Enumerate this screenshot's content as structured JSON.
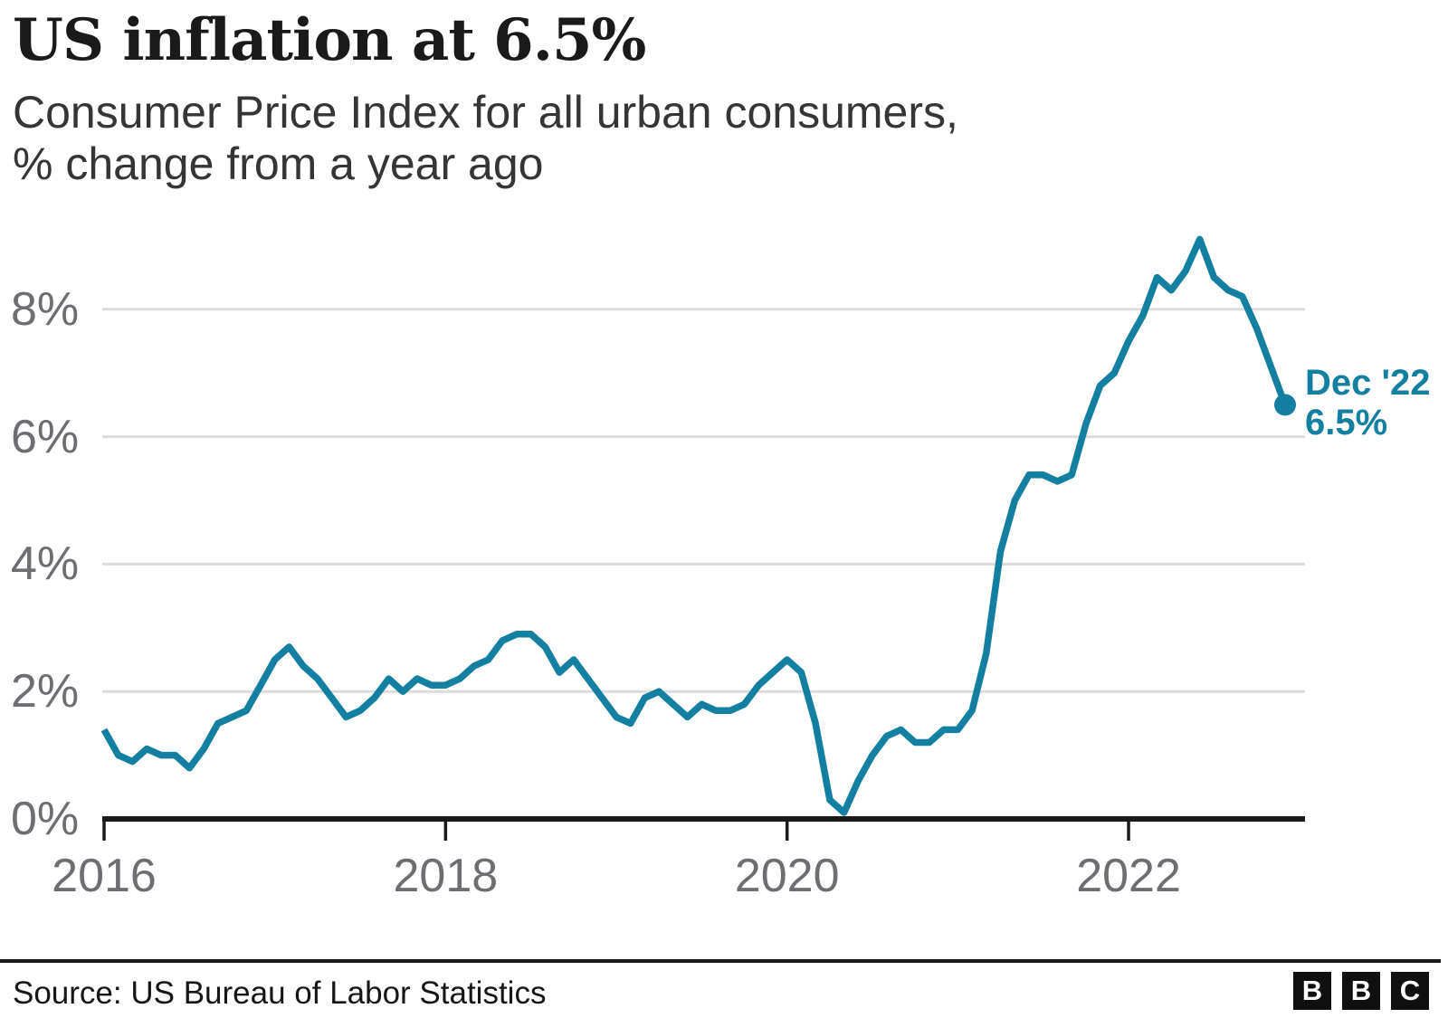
{
  "header": {
    "title": "US inflation at 6.5%",
    "subtitle_lines": [
      "Consumer Price Index for all urban consumers,",
      "% change from a year ago"
    ]
  },
  "footer": {
    "source": "Source: US Bureau of Labor Statistics",
    "brand_letters": [
      "B",
      "B",
      "C"
    ]
  },
  "chart_data": {
    "type": "line",
    "title": "US inflation at 6.5%",
    "subtitle": "Consumer Price Index for all urban consumers, % change from a year ago",
    "series_name": "CPI-U, % change from a year ago",
    "line_color": "#1380A1",
    "grid": "horizontal",
    "legend_position": "none",
    "ylim": [
      0,
      9.3
    ],
    "y_tick_values": [
      0,
      2,
      4,
      6,
      8
    ],
    "y_ticks": [
      "0%",
      "2%",
      "4%",
      "6%",
      "8%"
    ],
    "x_tick_month_indices": [
      0,
      24,
      48,
      72
    ],
    "x_ticks": [
      "2016",
      "2018",
      "2020",
      "2022"
    ],
    "x": [
      "2016-01",
      "2016-02",
      "2016-03",
      "2016-04",
      "2016-05",
      "2016-06",
      "2016-07",
      "2016-08",
      "2016-09",
      "2016-10",
      "2016-11",
      "2016-12",
      "2017-01",
      "2017-02",
      "2017-03",
      "2017-04",
      "2017-05",
      "2017-06",
      "2017-07",
      "2017-08",
      "2017-09",
      "2017-10",
      "2017-11",
      "2017-12",
      "2018-01",
      "2018-02",
      "2018-03",
      "2018-04",
      "2018-05",
      "2018-06",
      "2018-07",
      "2018-08",
      "2018-09",
      "2018-10",
      "2018-11",
      "2018-12",
      "2019-01",
      "2019-02",
      "2019-03",
      "2019-04",
      "2019-05",
      "2019-06",
      "2019-07",
      "2019-08",
      "2019-09",
      "2019-10",
      "2019-11",
      "2019-12",
      "2020-01",
      "2020-02",
      "2020-03",
      "2020-04",
      "2020-05",
      "2020-06",
      "2020-07",
      "2020-08",
      "2020-09",
      "2020-10",
      "2020-11",
      "2020-12",
      "2021-01",
      "2021-02",
      "2021-03",
      "2021-04",
      "2021-05",
      "2021-06",
      "2021-07",
      "2021-08",
      "2021-09",
      "2021-10",
      "2021-11",
      "2021-12",
      "2022-01",
      "2022-02",
      "2022-03",
      "2022-04",
      "2022-05",
      "2022-06",
      "2022-07",
      "2022-08",
      "2022-09",
      "2022-10",
      "2022-11",
      "2022-12"
    ],
    "values": [
      1.4,
      1.0,
      0.9,
      1.1,
      1.0,
      1.0,
      0.8,
      1.1,
      1.5,
      1.6,
      1.7,
      2.1,
      2.5,
      2.7,
      2.4,
      2.2,
      1.9,
      1.6,
      1.7,
      1.9,
      2.2,
      2.0,
      2.2,
      2.1,
      2.1,
      2.2,
      2.4,
      2.5,
      2.8,
      2.9,
      2.9,
      2.7,
      2.3,
      2.5,
      2.2,
      1.9,
      1.6,
      1.5,
      1.9,
      2.0,
      1.8,
      1.6,
      1.8,
      1.7,
      1.7,
      1.8,
      2.1,
      2.3,
      2.5,
      2.3,
      1.5,
      0.3,
      0.1,
      0.6,
      1.0,
      1.3,
      1.4,
      1.2,
      1.2,
      1.4,
      1.4,
      1.7,
      2.6,
      4.2,
      5.0,
      5.4,
      5.4,
      5.3,
      5.4,
      6.2,
      6.8,
      7.0,
      7.5,
      7.9,
      8.5,
      8.3,
      8.6,
      9.1,
      8.5,
      8.3,
      8.2,
      7.7,
      7.1,
      6.5
    ],
    "annotation": {
      "line1": "Dec '22",
      "line2": "6.5%"
    }
  }
}
